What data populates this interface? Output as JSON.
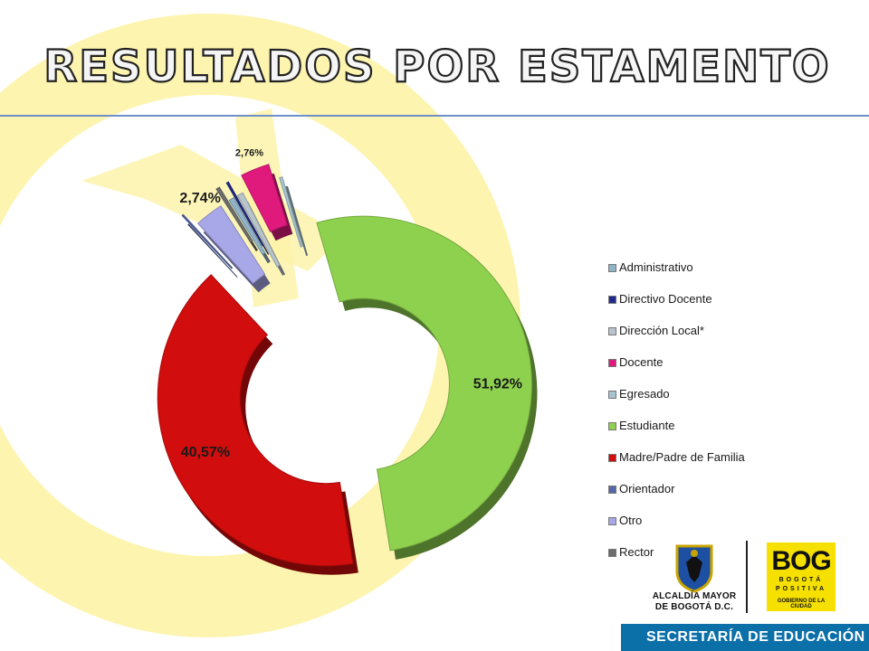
{
  "slide": {
    "title": "RESULTADOS POR ESTAMENTO",
    "footer": "SECRETARÍA DE EDUCACIÓN",
    "logo_alcaldia_line1": "ALCALDÍA MAYOR",
    "logo_alcaldia_line2": "DE BOGOTÁ D.C.",
    "logo_bog_title": "BOG",
    "logo_bog_line1": "BOGOTÁ",
    "logo_bog_line2": "POSITIVA",
    "logo_bog_line3": "GOBIERNO DE LA CIUDAD"
  },
  "chart_data": {
    "type": "pie",
    "variant": "exploded 3D doughnut",
    "categories": [
      "Administrativo",
      "Directivo Docente",
      "Dirección Local*",
      "Docente",
      "Egresado",
      "Estudiante",
      "Madre/Padre de Familia",
      "Orientador",
      "Otro",
      "Rector"
    ],
    "values": [
      0.48,
      0.2,
      0.56,
      2.76,
      0.29,
      51.92,
      40.57,
      0.14,
      2.74,
      0.34
    ],
    "labels": [
      "",
      "",
      "",
      "2,76%",
      "",
      "51,92%",
      "40,57%",
      "",
      "2,74%",
      ""
    ],
    "colors": [
      "#8fb3c8",
      "#1f2a8a",
      "#b7c4cc",
      "#e0197d",
      "#a8c4d0",
      "#8ed14e",
      "#d10d0d",
      "#5568a8",
      "#a8a8e8",
      "#6e6e6e"
    ],
    "legend_position": "right"
  }
}
